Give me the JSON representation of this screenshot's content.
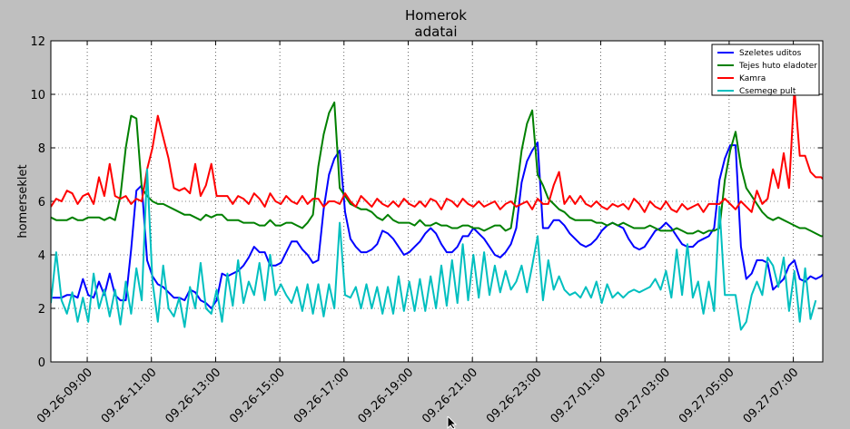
{
  "chart_data": {
    "type": "line",
    "title_lines": [
      "Homerok",
      "adatai"
    ],
    "xlabel": "",
    "ylabel": "homerseklet",
    "ylim": [
      0,
      12
    ],
    "yticks": [
      0,
      2,
      4,
      6,
      8,
      10,
      12
    ],
    "xlim": [
      "2012-09-26 07:52",
      "2012-09-27 07:55"
    ],
    "xtick_labels": [
      "09.26-09:00",
      "09.26-11:00",
      "09.26-13:00",
      "09.26-15:00",
      "09.26-17:00",
      "09.26-19:00",
      "09.26-21:00",
      "09.26-23:00",
      "09.27-01:00",
      "09.27-03:00",
      "09.27-05:00",
      "09.27-07:00"
    ],
    "xtick_hours": [
      9,
      11,
      13,
      15,
      17,
      19,
      21,
      23,
      25,
      27,
      29,
      31
    ],
    "x_step_minutes": 10,
    "grid": true,
    "legend_position": "top-right",
    "series": [
      {
        "name": "Szeletes uditos",
        "color": "#0000ff",
        "values": [
          2.4,
          2.4,
          2.4,
          2.5,
          2.5,
          2.4,
          3.1,
          2.5,
          2.4,
          3.0,
          2.5,
          3.3,
          2.5,
          2.3,
          2.3,
          4.2,
          6.4,
          6.6,
          3.8,
          3.2,
          2.9,
          2.8,
          2.6,
          2.4,
          2.4,
          2.3,
          2.7,
          2.6,
          2.3,
          2.2,
          2.0,
          2.3,
          3.3,
          3.2,
          3.3,
          3.4,
          3.6,
          3.9,
          4.3,
          4.1,
          4.1,
          3.6,
          3.6,
          3.7,
          4.1,
          4.5,
          4.5,
          4.2,
          4.0,
          3.7,
          3.8,
          5.7,
          7.0,
          7.6,
          7.9,
          5.6,
          4.6,
          4.3,
          4.1,
          4.1,
          4.2,
          4.4,
          4.9,
          4.8,
          4.6,
          4.3,
          4.0,
          4.1,
          4.3,
          4.5,
          4.8,
          5.0,
          4.8,
          4.4,
          4.1,
          4.1,
          4.3,
          4.7,
          4.7,
          5.0,
          4.8,
          4.6,
          4.3,
          4.0,
          3.9,
          4.1,
          4.4,
          5.0,
          6.7,
          7.5,
          7.9,
          8.2,
          5.0,
          5.0,
          5.3,
          5.3,
          5.1,
          4.8,
          4.6,
          4.4,
          4.3,
          4.4,
          4.6,
          4.9,
          5.1,
          5.2,
          5.1,
          5.0,
          4.6,
          4.3,
          4.2,
          4.3,
          4.6,
          4.9,
          5.0,
          5.2,
          5.0,
          4.7,
          4.4,
          4.3,
          4.3,
          4.5,
          4.6,
          4.7,
          5.0,
          6.8,
          7.6,
          8.1,
          8.1,
          4.3,
          3.1,
          3.3,
          3.8,
          3.8,
          3.7,
          2.7,
          2.9,
          3.1,
          3.6,
          3.8,
          3.1,
          3.0,
          3.2,
          3.1,
          3.2,
          3.4,
          3.7,
          3.7
        ]
      },
      {
        "name": "Tejes huto eladoter",
        "color": "#008000",
        "values": [
          5.4,
          5.3,
          5.3,
          5.3,
          5.4,
          5.3,
          5.3,
          5.4,
          5.4,
          5.4,
          5.3,
          5.4,
          5.3,
          6.2,
          8.0,
          9.2,
          9.1,
          6.5,
          6.2,
          6.0,
          5.9,
          5.9,
          5.8,
          5.7,
          5.6,
          5.5,
          5.5,
          5.4,
          5.3,
          5.5,
          5.4,
          5.5,
          5.5,
          5.3,
          5.3,
          5.3,
          5.2,
          5.2,
          5.2,
          5.1,
          5.1,
          5.3,
          5.1,
          5.1,
          5.2,
          5.2,
          5.1,
          5.0,
          5.2,
          5.5,
          7.3,
          8.5,
          9.3,
          9.7,
          6.5,
          6.2,
          5.9,
          5.8,
          5.7,
          5.7,
          5.6,
          5.4,
          5.3,
          5.5,
          5.3,
          5.2,
          5.2,
          5.2,
          5.1,
          5.3,
          5.1,
          5.1,
          5.2,
          5.1,
          5.1,
          5.0,
          5.0,
          5.1,
          5.1,
          5.0,
          5.0,
          4.9,
          5.0,
          5.1,
          5.1,
          4.9,
          5.0,
          6.3,
          7.9,
          8.9,
          9.4,
          7.0,
          6.6,
          6.1,
          5.9,
          5.7,
          5.6,
          5.4,
          5.3,
          5.3,
          5.3,
          5.3,
          5.2,
          5.2,
          5.1,
          5.2,
          5.1,
          5.2,
          5.1,
          5.0,
          5.0,
          5.0,
          5.1,
          5.0,
          4.9,
          4.9,
          4.9,
          5.0,
          4.9,
          4.8,
          4.8,
          4.9,
          4.8,
          4.9,
          4.9,
          5.0,
          6.8,
          7.9,
          8.6,
          7.3,
          6.5,
          6.2,
          5.9,
          5.6,
          5.4,
          5.3,
          5.4,
          5.3,
          5.2,
          5.1,
          5.0,
          5.0,
          4.9,
          4.8,
          4.7,
          4.7,
          4.8,
          4.7,
          4.6
        ]
      },
      {
        "name": "Kamra",
        "color": "#ff0000",
        "values": [
          5.8,
          6.1,
          6.0,
          6.4,
          6.3,
          5.9,
          6.2,
          6.3,
          5.9,
          6.9,
          6.2,
          7.4,
          6.2,
          6.1,
          6.2,
          5.9,
          6.1,
          6.0,
          7.2,
          8.0,
          9.2,
          8.4,
          7.6,
          6.5,
          6.4,
          6.5,
          6.3,
          7.4,
          6.2,
          6.6,
          7.4,
          6.2,
          6.2,
          6.2,
          5.9,
          6.2,
          6.1,
          5.9,
          6.3,
          6.1,
          5.8,
          6.3,
          6.0,
          5.9,
          6.2,
          6.0,
          5.9,
          6.2,
          5.9,
          6.1,
          6.1,
          5.8,
          6.0,
          6.0,
          5.9,
          6.3,
          6.0,
          5.8,
          6.2,
          6.0,
          5.8,
          6.1,
          5.9,
          5.8,
          6.0,
          5.8,
          6.1,
          5.9,
          5.8,
          6.0,
          5.8,
          6.1,
          6.0,
          5.7,
          6.1,
          6.0,
          5.8,
          6.1,
          5.9,
          5.8,
          6.0,
          5.8,
          5.9,
          6.0,
          5.7,
          5.9,
          6.0,
          5.8,
          5.9,
          6.0,
          5.7,
          6.1,
          5.9,
          5.9,
          6.6,
          7.1,
          5.9,
          6.2,
          5.9,
          6.2,
          5.9,
          5.8,
          6.0,
          5.8,
          5.7,
          5.9,
          5.8,
          5.9,
          5.7,
          6.1,
          5.9,
          5.6,
          6.0,
          5.8,
          5.7,
          6.0,
          5.7,
          5.6,
          5.9,
          5.7,
          5.8,
          5.9,
          5.6,
          5.9,
          5.9,
          5.9,
          6.1,
          5.9,
          5.7,
          6.0,
          5.8,
          5.6,
          6.4,
          5.9,
          6.1,
          7.2,
          6.5,
          7.8,
          6.5,
          10.2,
          7.7,
          7.7,
          7.1,
          6.9,
          6.9,
          6.7,
          6.1
        ]
      },
      {
        "name": "Csemege pult",
        "color": "#00bfbf",
        "values": [
          2.2,
          4.1,
          2.3,
          1.8,
          2.6,
          1.5,
          2.4,
          1.5,
          3.3,
          2.0,
          2.7,
          1.7,
          2.7,
          1.4,
          3.0,
          1.8,
          3.5,
          2.3,
          7.2,
          3.0,
          1.5,
          3.6,
          2.0,
          1.7,
          2.4,
          1.3,
          2.8,
          2.0,
          3.7,
          2.0,
          1.8,
          2.7,
          1.5,
          3.3,
          2.1,
          3.8,
          2.2,
          3.0,
          2.5,
          3.7,
          2.3,
          4.0,
          2.5,
          2.9,
          2.5,
          2.2,
          2.8,
          1.9,
          2.9,
          1.8,
          2.9,
          1.7,
          2.9,
          2.0,
          5.2,
          2.5,
          2.4,
          2.8,
          2.0,
          2.9,
          2.0,
          2.8,
          1.8,
          2.8,
          1.8,
          3.2,
          1.9,
          3.0,
          1.9,
          3.1,
          1.9,
          3.2,
          2.0,
          3.6,
          2.1,
          3.8,
          2.2,
          4.4,
          2.3,
          4.0,
          2.4,
          4.1,
          2.5,
          3.6,
          2.6,
          3.4,
          2.7,
          3.0,
          3.6,
          2.6,
          3.6,
          4.7,
          2.3,
          3.8,
          2.7,
          3.2,
          2.7,
          2.5,
          2.6,
          2.4,
          2.8,
          2.4,
          3.0,
          2.2,
          2.9,
          2.4,
          2.6,
          2.4,
          2.6,
          2.7,
          2.6,
          2.7,
          2.8,
          3.1,
          2.7,
          3.4,
          2.4,
          4.2,
          2.5,
          4.4,
          2.4,
          3.0,
          1.8,
          3.0,
          1.9,
          5.8,
          2.5,
          2.5,
          2.5,
          1.2,
          1.5,
          2.5,
          3.0,
          2.5,
          3.9,
          3.6,
          2.8,
          3.9,
          1.9,
          3.4,
          1.5,
          3.5,
          1.6,
          2.3
        ]
      }
    ]
  }
}
